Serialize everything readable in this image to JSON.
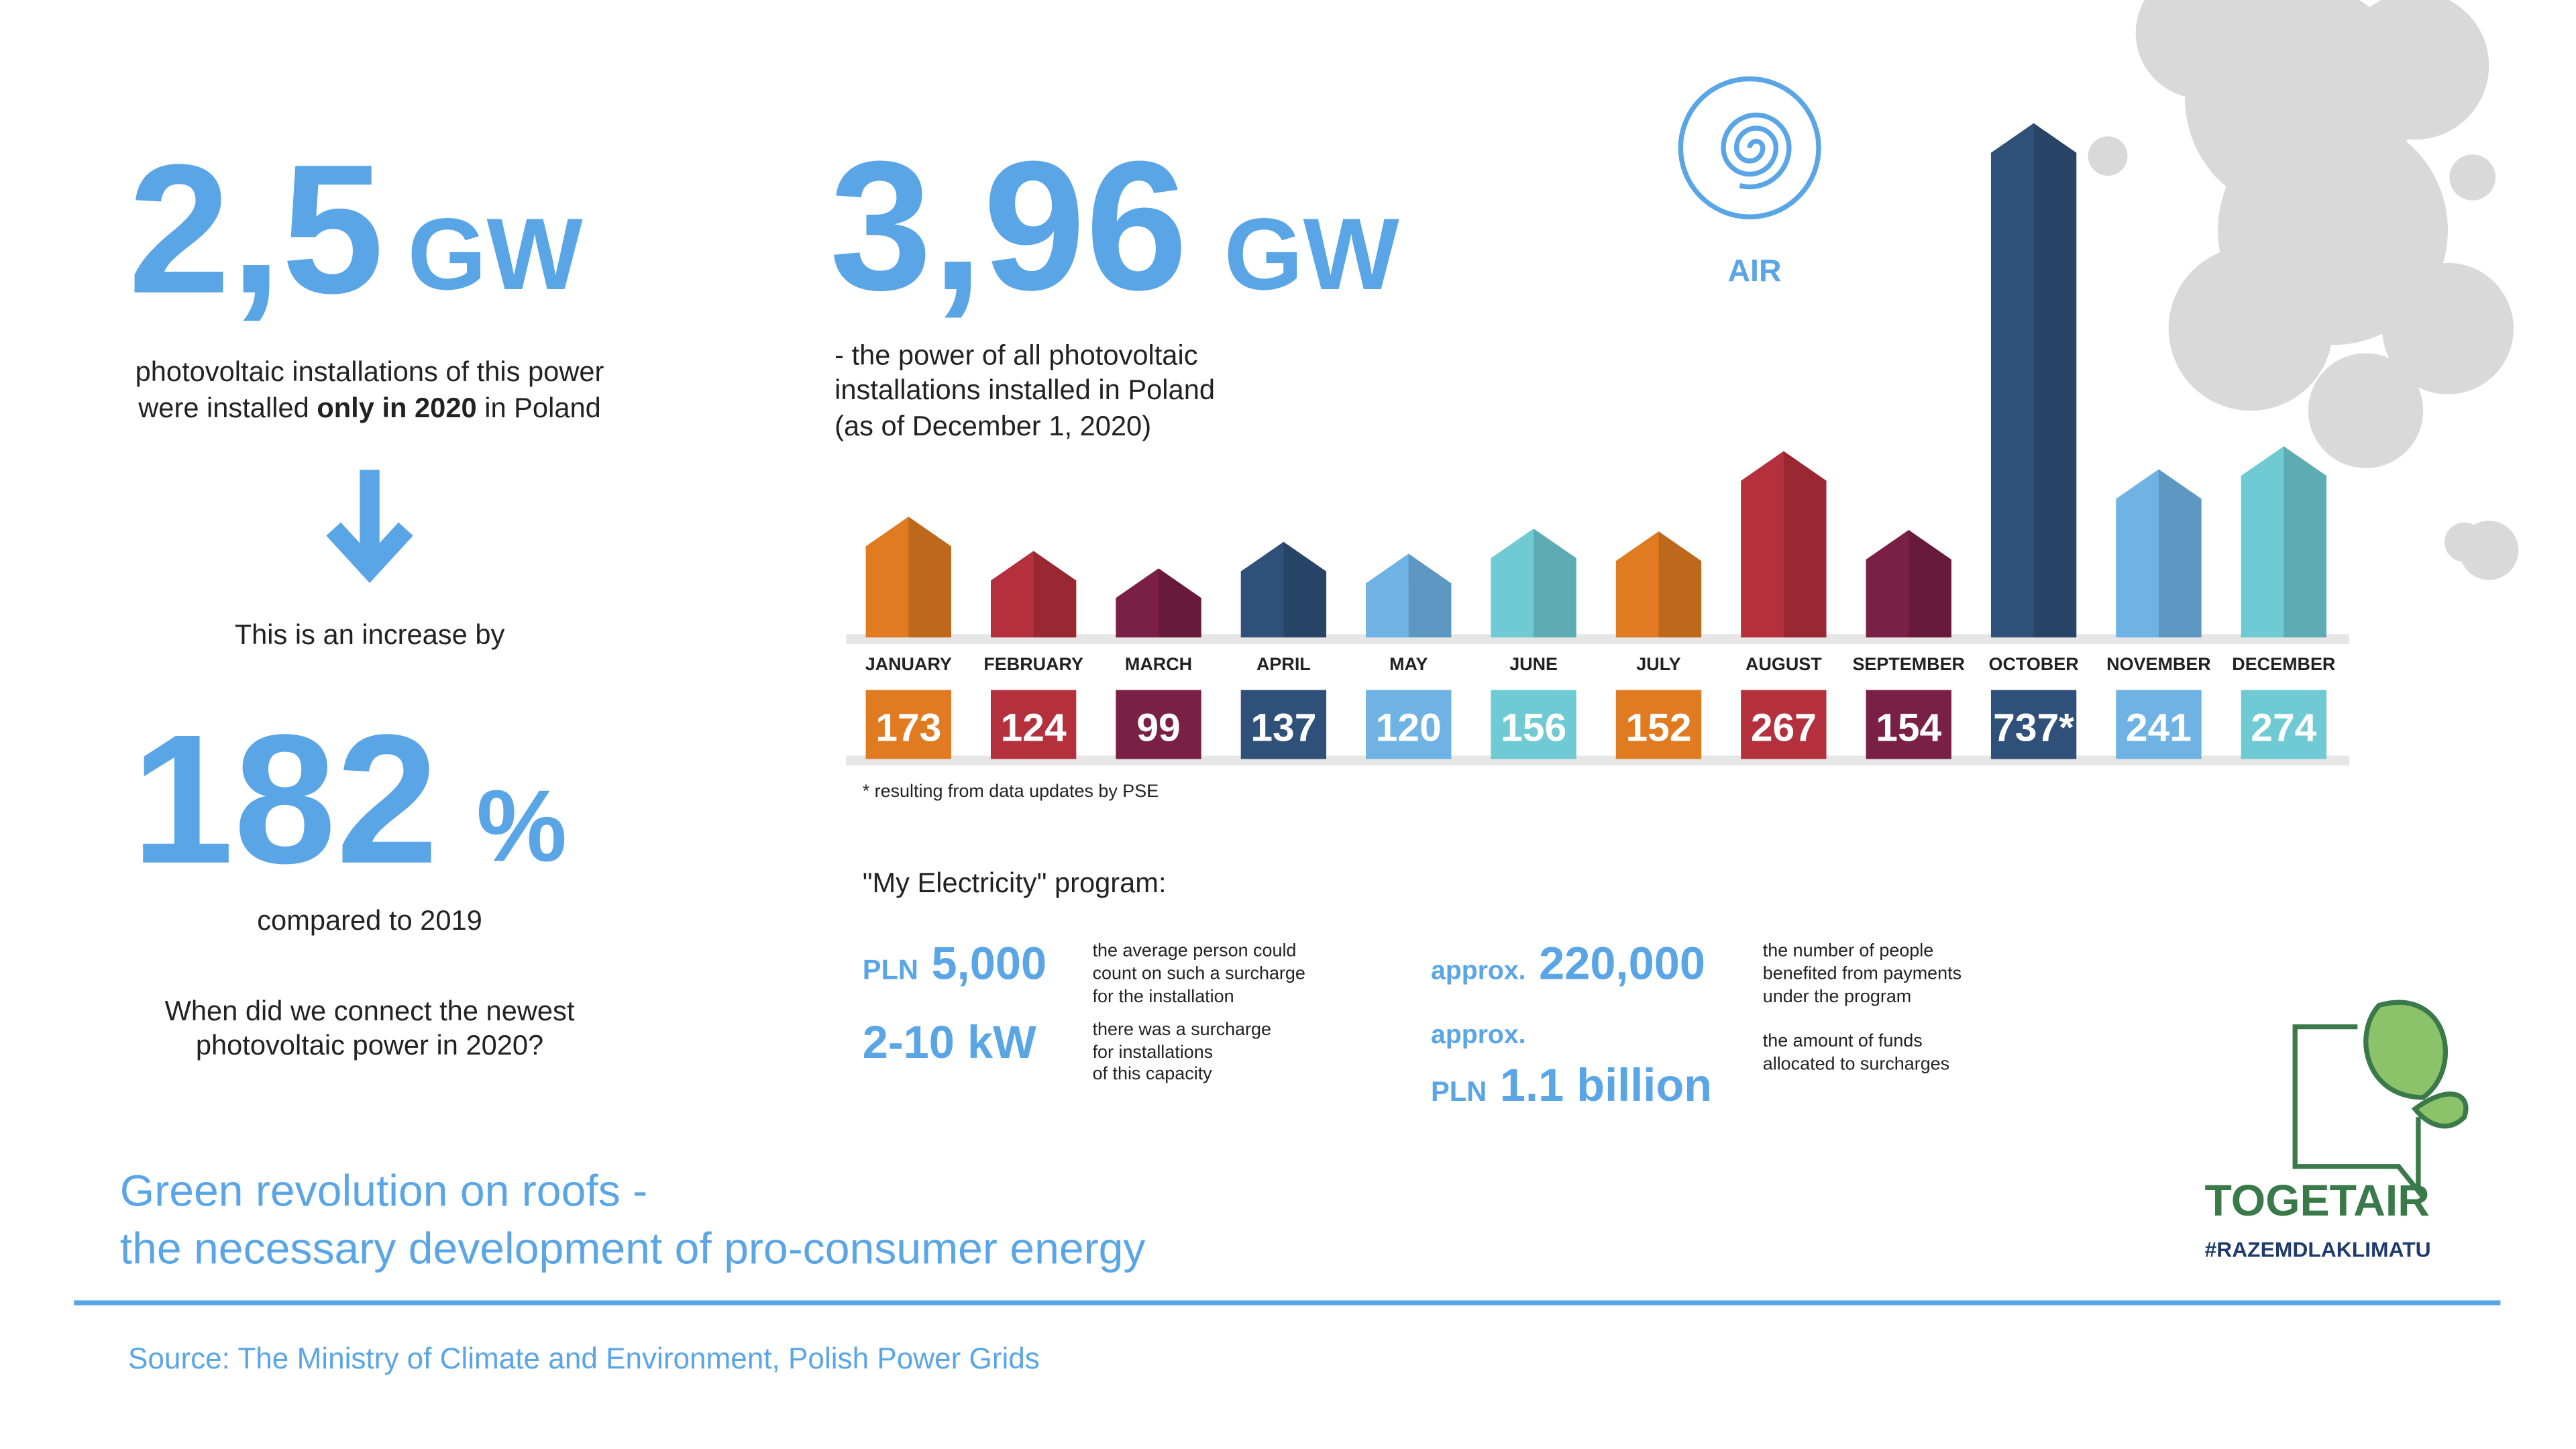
{
  "left": {
    "big": "2,5",
    "unit": "GW",
    "desc1": "photovoltaic installations of this power",
    "desc2_pre": "were installed ",
    "desc2_bold": "only in 2020",
    "desc2_post": " in Poland",
    "increase": "This is an increase by",
    "pct": "182",
    "pct_unit": "%",
    "compared": "compared to 2019",
    "question": [
      "When did we connect the newest",
      "photovoltaic power in 2020?"
    ]
  },
  "total": {
    "big": "3,96",
    "unit": "GW",
    "desc": [
      "- the power of all photovoltaic",
      "installations installed in Poland",
      "(as of December 1, 2020)"
    ]
  },
  "icon_label": "AIR",
  "chart_data": {
    "type": "bar",
    "categories": [
      "JANUARY",
      "FEBRUARY",
      "MARCH",
      "APRIL",
      "MAY",
      "JUNE",
      "JULY",
      "AUGUST",
      "SEPTEMBER",
      "OCTOBER",
      "NOVEMBER",
      "DECEMBER"
    ],
    "values": [
      173,
      124,
      99,
      137,
      120,
      156,
      152,
      267,
      154,
      737,
      241,
      274
    ],
    "value_labels": [
      "173",
      "124",
      "99",
      "137",
      "120",
      "156",
      "152",
      "267",
      "154",
      "737*",
      "241",
      "274"
    ],
    "colors": [
      "#e07b22",
      "#b5303d",
      "#7a1f45",
      "#2f5079",
      "#6fb2e4",
      "#6fcad3",
      "#e07b22",
      "#b5303d",
      "#7a1f45",
      "#2f5079",
      "#6fb2e4",
      "#6fcad3"
    ],
    "footnote": "* resulting from data updates by PSE"
  },
  "program": {
    "title": "\"My Electricity\" program:",
    "items": [
      {
        "prefix": "PLN",
        "value": "5,000",
        "desc": [
          "the average person could",
          "count on such a surcharge",
          "for the installation"
        ]
      },
      {
        "value": "2-10 kW",
        "desc": [
          "there was a surcharge",
          "for installations",
          "of this capacity"
        ]
      },
      {
        "prefix": "approx.",
        "value": "220,000",
        "desc": [
          "the number of people",
          "benefited from payments",
          "under the program"
        ]
      },
      {
        "prefix": "approx.",
        "prefix2": "PLN",
        "value": "1.1 billion",
        "desc": [
          "the amount of funds",
          "allocated to surcharges"
        ]
      }
    ]
  },
  "headline": [
    "Green revolution on roofs -",
    "the necessary development of pro-consumer energy"
  ],
  "source": "Source: The Ministry of Climate and Environment, Polish Power Grids",
  "logo": {
    "name": "TOGETAIR",
    "tag": "#RAZEMDLAKLIMATU"
  }
}
